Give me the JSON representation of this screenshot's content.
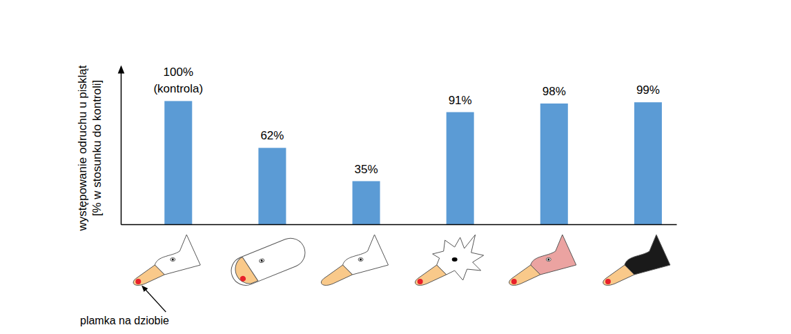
{
  "chart_data": {
    "type": "bar",
    "ylabel": "występowanie odruchu u piskląt\n[% w stosunku do kontroli]",
    "categories": [
      null,
      null,
      null,
      null,
      null,
      null
    ],
    "values": [
      100,
      62,
      35,
      91,
      98,
      99
    ],
    "value_labels": [
      "100%\n(kontrola)",
      "62%",
      "35%",
      "91%",
      "98%",
      "99%"
    ],
    "data_labels": true,
    "color": "#5b9bd5",
    "ylim": [
      0,
      126
    ],
    "yticks": [],
    "tick_labels": false,
    "grid": false,
    "annotations": [
      "plamka na dziobie"
    ]
  }
}
